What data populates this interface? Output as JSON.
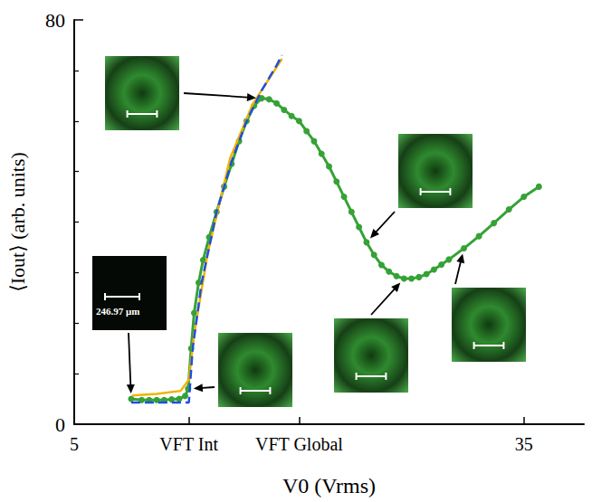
{
  "chart_data": {
    "type": "line",
    "xlabel": "V0 (Vrms)",
    "ylabel": "⟨Iout⟩ (arb. units)",
    "xlim": [
      5,
      39
    ],
    "xticks": [
      5,
      {
        "value": 12.65,
        "label": "VFT Int"
      },
      {
        "value": 20,
        "label": "VFT Global"
      },
      35
    ],
    "ylim": [
      0,
      80
    ],
    "yticks": [
      0,
      80
    ],
    "grid": false,
    "annotations": [
      "246.97 μm"
    ],
    "series": [
      {
        "type": "line",
        "color": "#36a236",
        "marker": "circle",
        "line_style": "solid",
        "x": [
          8.8,
          9.5,
          10,
          10.5,
          11,
          11.5,
          12,
          12.4,
          12.6,
          12.8,
          13,
          13.3,
          13.6,
          14,
          14.5,
          15,
          15.5,
          16,
          16.5,
          17,
          17.5,
          18,
          18.5,
          19,
          19.5,
          20,
          20.5,
          21,
          21.5,
          22,
          22.5,
          23,
          23.5,
          24,
          24.5,
          25,
          25.5,
          26,
          26.5,
          27,
          27.5,
          28,
          28.5,
          29,
          29.5,
          30,
          31,
          32,
          33,
          34,
          35,
          36
        ],
        "values": [
          5.0,
          4.8,
          4.8,
          4.8,
          4.8,
          4.9,
          5.0,
          5.6,
          7,
          15,
          22,
          28,
          32.5,
          37,
          42,
          47,
          51.5,
          56,
          60,
          63,
          64.5,
          64.3,
          63.5,
          62.2,
          61,
          60,
          58,
          56,
          53.5,
          51,
          48,
          45,
          42,
          39,
          36,
          33.5,
          31.5,
          30.2,
          29.3,
          28.8,
          28.8,
          29.1,
          29.7,
          30.6,
          31.6,
          32.6,
          34.8,
          37.2,
          39.8,
          42.5,
          45,
          47
        ]
      },
      {
        "type": "line",
        "color": "#f2b200",
        "marker": "none",
        "line_style": "solid",
        "x": [
          8.86,
          10.5,
          12.1,
          12.65,
          13.0,
          13.9,
          15.4,
          16.9,
          18.86
        ],
        "values": [
          5.7,
          6.0,
          6.6,
          8.8,
          17.7,
          33.8,
          52.6,
          63.3,
          72.3
        ]
      },
      {
        "type": "line",
        "color": "#1f4fe0",
        "marker": "none",
        "line_style": "dashed",
        "x": [
          8.8,
          12.65,
          12.9,
          13.5,
          14.5,
          15.5,
          16.5,
          17.5,
          18.5,
          18.86
        ],
        "values": [
          4.3,
          4.3,
          15,
          28,
          42,
          52,
          60,
          66,
          71,
          73
        ]
      }
    ]
  }
}
